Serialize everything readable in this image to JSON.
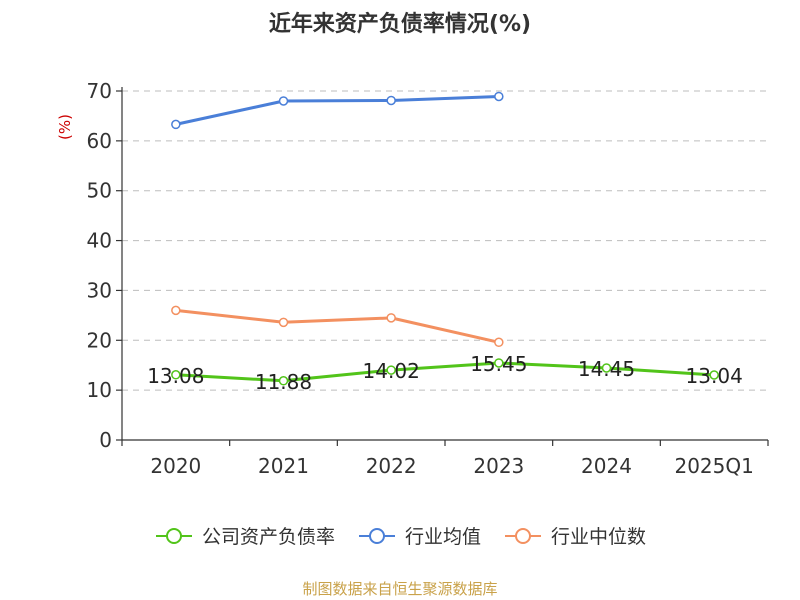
{
  "title": "近年来资产负债率情况(%)",
  "unit_label": "(%)",
  "footer": "制图数据来自恒生聚源数据库",
  "legend": [
    {
      "name": "公司资产负债率",
      "color": "#52c41a"
    },
    {
      "name": "行业均值",
      "color": "#4a7fd8"
    },
    {
      "name": "行业中位数",
      "color": "#f39060"
    }
  ],
  "chart_data": {
    "type": "line",
    "title": "近年来资产负债率情况(%)",
    "ylabel": "(%)",
    "categories": [
      "2020",
      "2021",
      "2022",
      "2023",
      "2024",
      "2025Q1"
    ],
    "ylim": [
      0,
      70
    ],
    "yticks": [
      0,
      10,
      20,
      30,
      40,
      50,
      60,
      70
    ],
    "grid": true,
    "legend_position": "bottom",
    "series": [
      {
        "name": "公司资产负债率",
        "color": "#52c41a",
        "values": [
          13.08,
          11.88,
          14.02,
          15.45,
          14.45,
          13.04
        ],
        "labels": [
          "13.08",
          "11.88",
          "14.02",
          "15.45",
          "14.45",
          "13.04"
        ]
      },
      {
        "name": "行业均值",
        "color": "#4a7fd8",
        "values": [
          63.3,
          68.0,
          68.1,
          68.9,
          null,
          null
        ]
      },
      {
        "name": "行业中位数",
        "color": "#f39060",
        "values": [
          26.0,
          23.6,
          24.5,
          19.6,
          null,
          null
        ]
      }
    ]
  }
}
